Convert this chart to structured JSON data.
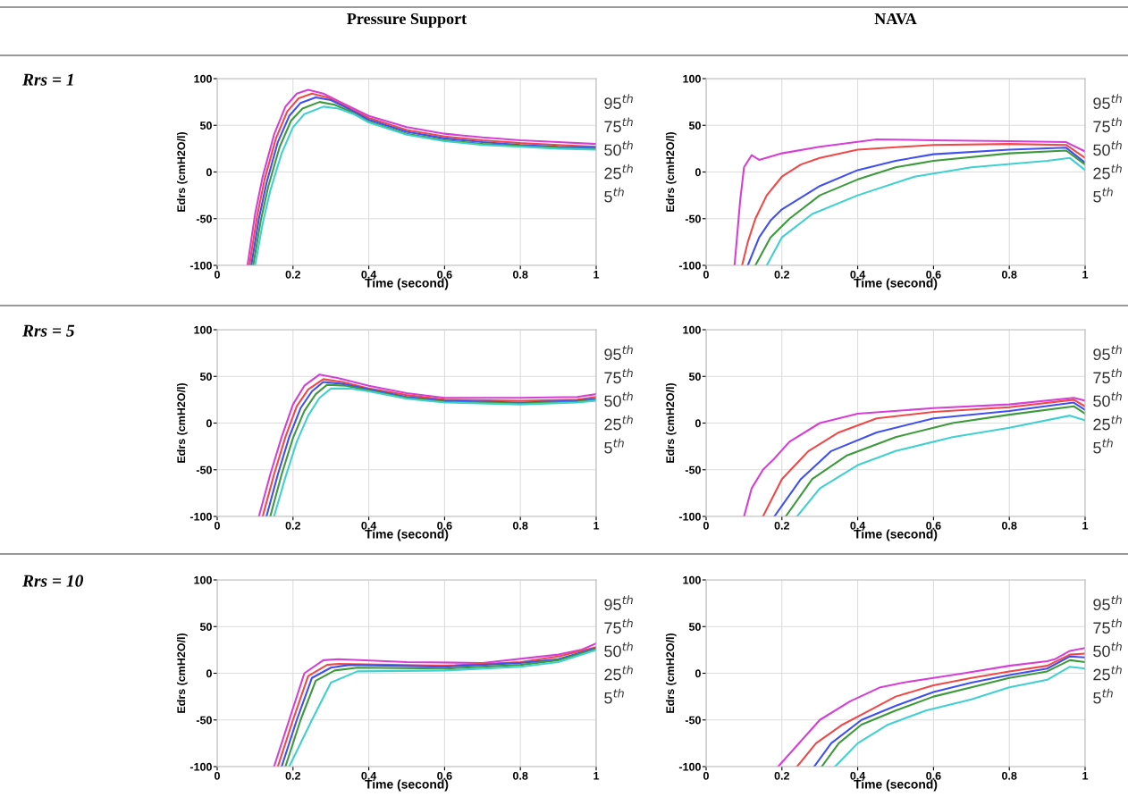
{
  "chart_data": [
    {
      "type": "line",
      "title": "Pressure Support",
      "annotations": [
        "Rrs = 1"
      ],
      "xlabel": "Time (second)",
      "ylabel": "Edrs (cmH2O/l)",
      "xlim": [
        0,
        1
      ],
      "ylim": [
        -100,
        100
      ],
      "xticks": [
        0,
        0.2,
        0.4,
        0.6,
        0.8,
        1
      ],
      "yticks": [
        -100,
        -50,
        0,
        50,
        100
      ],
      "grid": true,
      "legend": "right",
      "series": [
        {
          "name": "95$^{th}$",
          "color": "#d63fd6",
          "x": [
            0.08,
            0.1,
            0.12,
            0.15,
            0.18,
            0.21,
            0.24,
            0.28,
            0.32,
            0.4,
            0.5,
            0.6,
            0.7,
            0.8,
            0.9,
            1.0
          ],
          "values": [
            -100,
            -45,
            -5,
            40,
            70,
            84,
            88,
            84,
            76,
            60,
            48,
            41,
            37,
            34,
            32,
            30
          ]
        },
        {
          "name": "75$^{th}$",
          "color": "#f04848",
          "x": [
            0.085,
            0.105,
            0.125,
            0.155,
            0.185,
            0.215,
            0.25,
            0.29,
            0.33,
            0.4,
            0.5,
            0.6,
            0.7,
            0.8,
            0.9,
            1.0
          ],
          "values": [
            -100,
            -48,
            -8,
            36,
            65,
            79,
            84,
            80,
            72,
            58,
            45,
            38,
            34,
            31,
            29,
            27
          ]
        },
        {
          "name": "50$^{th}$",
          "color": "#3f4ff0",
          "x": [
            0.09,
            0.11,
            0.13,
            0.16,
            0.19,
            0.22,
            0.26,
            0.3,
            0.34,
            0.4,
            0.5,
            0.6,
            0.7,
            0.8,
            0.9,
            1.0
          ],
          "values": [
            -100,
            -50,
            -12,
            32,
            60,
            74,
            80,
            77,
            69,
            56,
            43,
            36,
            32,
            29,
            27,
            26
          ]
        },
        {
          "name": "25$^{th}$",
          "color": "#3c9a3c",
          "x": [
            0.095,
            0.115,
            0.135,
            0.165,
            0.195,
            0.225,
            0.27,
            0.31,
            0.35,
            0.4,
            0.5,
            0.6,
            0.7,
            0.8,
            0.9,
            1.0
          ],
          "values": [
            -100,
            -52,
            -15,
            27,
            55,
            68,
            75,
            72,
            65,
            54,
            41,
            34,
            30,
            28,
            26,
            25
          ]
        },
        {
          "name": "5$^{th}$",
          "color": "#40d0d0",
          "x": [
            0.1,
            0.12,
            0.14,
            0.17,
            0.2,
            0.23,
            0.28,
            0.32,
            0.36,
            0.4,
            0.5,
            0.6,
            0.7,
            0.8,
            0.9,
            1.0
          ],
          "values": [
            -100,
            -55,
            -20,
            20,
            48,
            62,
            70,
            68,
            62,
            53,
            40,
            33,
            29,
            27,
            25,
            24
          ]
        }
      ]
    },
    {
      "type": "line",
      "title": "NAVA",
      "xlabel": "Time (second)",
      "ylabel": "Edrs (cmH2O/l)",
      "xlim": [
        0,
        1
      ],
      "ylim": [
        -100,
        100
      ],
      "xticks": [
        0,
        0.2,
        0.4,
        0.6,
        0.8,
        1
      ],
      "yticks": [
        -100,
        -50,
        0,
        50,
        100
      ],
      "grid": true,
      "legend": "right",
      "series": [
        {
          "name": "95$^{th}$",
          "color": "#d63fd6",
          "x": [
            0.075,
            0.09,
            0.1,
            0.12,
            0.14,
            0.2,
            0.3,
            0.45,
            0.6,
            0.8,
            0.95,
            1.0
          ],
          "values": [
            -100,
            -30,
            5,
            18,
            13,
            20,
            27,
            35,
            34,
            33,
            32,
            22
          ]
        },
        {
          "name": "75$^{th}$",
          "color": "#f04848",
          "x": [
            0.095,
            0.11,
            0.13,
            0.16,
            0.2,
            0.25,
            0.3,
            0.4,
            0.6,
            0.8,
            0.95,
            1.0
          ],
          "values": [
            -100,
            -75,
            -50,
            -25,
            -5,
            8,
            15,
            24,
            29,
            30,
            29,
            15
          ]
        },
        {
          "name": "50$^{th}$",
          "color": "#3f4ff0",
          "x": [
            0.11,
            0.14,
            0.17,
            0.2,
            0.3,
            0.4,
            0.5,
            0.6,
            0.8,
            0.95,
            1.0
          ],
          "values": [
            -100,
            -70,
            -52,
            -40,
            -15,
            2,
            12,
            19,
            24,
            26,
            10
          ]
        },
        {
          "name": "25$^{th}$",
          "color": "#3c9a3c",
          "x": [
            0.13,
            0.17,
            0.22,
            0.3,
            0.4,
            0.5,
            0.6,
            0.8,
            0.95,
            1.0
          ],
          "values": [
            -100,
            -70,
            -50,
            -25,
            -8,
            5,
            12,
            20,
            23,
            8
          ]
        },
        {
          "name": "5$^{th}$",
          "color": "#40d0d0",
          "x": [
            0.16,
            0.2,
            0.28,
            0.4,
            0.55,
            0.7,
            0.9,
            0.96,
            1.0
          ],
          "values": [
            -100,
            -70,
            -45,
            -25,
            -5,
            5,
            12,
            15,
            2
          ]
        }
      ]
    },
    {
      "type": "line",
      "annotations": [
        "Rrs = 5"
      ],
      "xlabel": "Time (second)",
      "ylabel": "Edrs (cmH2O/l)",
      "xlim": [
        0,
        1
      ],
      "ylim": [
        -100,
        100
      ],
      "xticks": [
        0,
        0.2,
        0.4,
        0.6,
        0.8,
        1
      ],
      "yticks": [
        -100,
        -50,
        0,
        50,
        100
      ],
      "grid": true,
      "legend": "right",
      "series": [
        {
          "name": "95$^{th}$",
          "color": "#d63fd6",
          "x": [
            0.11,
            0.14,
            0.17,
            0.2,
            0.23,
            0.27,
            0.32,
            0.4,
            0.5,
            0.6,
            0.8,
            0.95,
            1.0
          ],
          "values": [
            -100,
            -55,
            -15,
            20,
            40,
            52,
            48,
            40,
            32,
            27,
            27,
            28,
            31
          ]
        },
        {
          "name": "75$^{th}$",
          "color": "#f04848",
          "x": [
            0.12,
            0.15,
            0.18,
            0.21,
            0.24,
            0.28,
            0.33,
            0.4,
            0.5,
            0.6,
            0.8,
            0.95,
            1.0
          ],
          "values": [
            -100,
            -55,
            -15,
            18,
            36,
            47,
            44,
            37,
            30,
            25,
            24,
            25,
            28
          ]
        },
        {
          "name": "50$^{th}$",
          "color": "#3f4ff0",
          "x": [
            0.13,
            0.16,
            0.19,
            0.22,
            0.25,
            0.28,
            0.33,
            0.4,
            0.5,
            0.6,
            0.8,
            0.95,
            1.0
          ],
          "values": [
            -100,
            -55,
            -15,
            16,
            34,
            44,
            42,
            36,
            28,
            24,
            22,
            24,
            26
          ]
        },
        {
          "name": "25$^{th}$",
          "color": "#3c9a3c",
          "x": [
            0.14,
            0.17,
            0.2,
            0.23,
            0.26,
            0.29,
            0.34,
            0.4,
            0.5,
            0.6,
            0.8,
            0.95,
            1.0
          ],
          "values": [
            -100,
            -55,
            -16,
            13,
            31,
            41,
            40,
            35,
            27,
            23,
            21,
            23,
            25
          ]
        },
        {
          "name": "5$^{th}$",
          "color": "#40d0d0",
          "x": [
            0.15,
            0.18,
            0.21,
            0.24,
            0.27,
            0.3,
            0.35,
            0.4,
            0.5,
            0.6,
            0.8,
            0.95,
            1.0
          ],
          "values": [
            -100,
            -58,
            -20,
            8,
            27,
            37,
            37,
            34,
            26,
            22,
            20,
            22,
            24
          ]
        }
      ]
    },
    {
      "type": "line",
      "xlabel": "Time (second)",
      "ylabel": "Edrs (cmH2O/l)",
      "xlim": [
        0,
        1
      ],
      "ylim": [
        -100,
        100
      ],
      "xticks": [
        0,
        0.2,
        0.4,
        0.6,
        0.8,
        1
      ],
      "yticks": [
        -100,
        -50,
        0,
        50,
        100
      ],
      "grid": true,
      "legend": "right",
      "series": [
        {
          "name": "95$^{th}$",
          "color": "#d63fd6",
          "x": [
            0.1,
            0.12,
            0.15,
            0.18,
            0.22,
            0.3,
            0.4,
            0.6,
            0.8,
            0.97,
            1.0
          ],
          "values": [
            -100,
            -70,
            -50,
            -38,
            -20,
            0,
            10,
            16,
            20,
            27,
            24
          ]
        },
        {
          "name": "75$^{th}$",
          "color": "#f04848",
          "x": [
            0.15,
            0.2,
            0.27,
            0.35,
            0.45,
            0.6,
            0.8,
            0.97,
            1.0
          ],
          "values": [
            -100,
            -60,
            -30,
            -10,
            5,
            12,
            17,
            25,
            18
          ]
        },
        {
          "name": "50$^{th}$",
          "color": "#3f4ff0",
          "x": [
            0.18,
            0.25,
            0.33,
            0.45,
            0.6,
            0.8,
            0.97,
            1.0
          ],
          "values": [
            -100,
            -60,
            -30,
            -10,
            5,
            13,
            22,
            14
          ]
        },
        {
          "name": "25$^{th}$",
          "color": "#3c9a3c",
          "x": [
            0.21,
            0.28,
            0.37,
            0.5,
            0.65,
            0.8,
            0.97,
            1.0
          ],
          "values": [
            -100,
            -60,
            -35,
            -15,
            0,
            9,
            18,
            10
          ]
        },
        {
          "name": "5$^{th}$",
          "color": "#40d0d0",
          "x": [
            0.24,
            0.3,
            0.4,
            0.5,
            0.65,
            0.8,
            0.96,
            1.0
          ],
          "values": [
            -100,
            -70,
            -45,
            -30,
            -15,
            -5,
            8,
            3
          ]
        }
      ]
    },
    {
      "type": "line",
      "annotations": [
        "Rrs = 10"
      ],
      "xlabel": "Time (second)",
      "ylabel": "Edrs (cmH2O/l)",
      "xlim": [
        0,
        1
      ],
      "ylim": [
        -100,
        100
      ],
      "xticks": [
        0,
        0.2,
        0.4,
        0.6,
        0.8,
        1
      ],
      "yticks": [
        -100,
        -50,
        0,
        50,
        100
      ],
      "grid": true,
      "legend": "right",
      "series": [
        {
          "name": "95$^{th}$",
          "color": "#d63fd6",
          "x": [
            0.15,
            0.19,
            0.23,
            0.28,
            0.32,
            0.5,
            0.7,
            0.9,
            0.96,
            1.0
          ],
          "values": [
            -100,
            -50,
            0,
            14,
            15,
            12,
            11,
            20,
            25,
            32
          ]
        },
        {
          "name": "75$^{th}$",
          "color": "#f04848",
          "x": [
            0.16,
            0.2,
            0.24,
            0.29,
            0.32,
            0.6,
            0.8,
            0.9,
            1.0
          ],
          "values": [
            -100,
            -50,
            -3,
            9,
            10,
            8,
            12,
            18,
            28
          ]
        },
        {
          "name": "50$^{th}$",
          "color": "#3f4ff0",
          "x": [
            0.17,
            0.21,
            0.25,
            0.3,
            0.35,
            0.6,
            0.8,
            0.9,
            1.0
          ],
          "values": [
            -100,
            -50,
            -5,
            6,
            9,
            7,
            11,
            15,
            27
          ]
        },
        {
          "name": "25$^{th}$",
          "color": "#3c9a3c",
          "x": [
            0.18,
            0.22,
            0.26,
            0.31,
            0.37,
            0.6,
            0.8,
            0.9,
            1.0
          ],
          "values": [
            -100,
            -50,
            -8,
            3,
            6,
            5,
            9,
            14,
            26
          ]
        },
        {
          "name": "5$^{th}$",
          "color": "#40d0d0",
          "x": [
            0.19,
            0.25,
            0.3,
            0.37,
            0.6,
            0.8,
            0.9,
            1.0
          ],
          "values": [
            -100,
            -50,
            -10,
            2,
            3,
            7,
            12,
            25
          ]
        }
      ]
    },
    {
      "type": "line",
      "xlabel": "Time (second)",
      "ylabel": "Edrs (cmH2O/l)",
      "xlim": [
        0,
        1
      ],
      "ylim": [
        -100,
        100
      ],
      "xticks": [
        0,
        0.2,
        0.4,
        0.6,
        0.8,
        1
      ],
      "yticks": [
        -100,
        -50,
        0,
        50,
        100
      ],
      "grid": true,
      "legend": "right",
      "series": [
        {
          "name": "95$^{th}$",
          "color": "#d63fd6",
          "x": [
            0.19,
            0.3,
            0.38,
            0.46,
            0.52,
            0.6,
            0.68,
            0.8,
            0.9,
            0.92,
            0.96,
            1.0
          ],
          "values": [
            -100,
            -50,
            -30,
            -15,
            -10,
            -5,
            0,
            8,
            13,
            15,
            24,
            27
          ]
        },
        {
          "name": "75$^{th}$",
          "color": "#f04848",
          "x": [
            0.24,
            0.29,
            0.36,
            0.43,
            0.5,
            0.6,
            0.7,
            0.8,
            0.9,
            0.96,
            1.0
          ],
          "values": [
            -100,
            -75,
            -55,
            -40,
            -25,
            -13,
            -5,
            2,
            8,
            20,
            21
          ]
        },
        {
          "name": "50$^{th}$",
          "color": "#3f4ff0",
          "x": [
            0.285,
            0.33,
            0.41,
            0.5,
            0.6,
            0.7,
            0.8,
            0.9,
            0.96,
            1.0
          ],
          "values": [
            -100,
            -75,
            -50,
            -35,
            -20,
            -10,
            -2,
            5,
            18,
            17
          ]
        },
        {
          "name": "25$^{th}$",
          "color": "#3c9a3c",
          "x": [
            0.305,
            0.35,
            0.41,
            0.5,
            0.6,
            0.7,
            0.8,
            0.9,
            0.96,
            1.0
          ],
          "values": [
            -100,
            -75,
            -55,
            -40,
            -25,
            -15,
            -5,
            2,
            14,
            12
          ]
        },
        {
          "name": "5$^{th}$",
          "color": "#40d0d0",
          "x": [
            0.34,
            0.4,
            0.48,
            0.58,
            0.7,
            0.8,
            0.9,
            0.96,
            1.0
          ],
          "values": [
            -100,
            -75,
            -55,
            -40,
            -28,
            -15,
            -7,
            7,
            5
          ]
        }
      ]
    }
  ]
}
